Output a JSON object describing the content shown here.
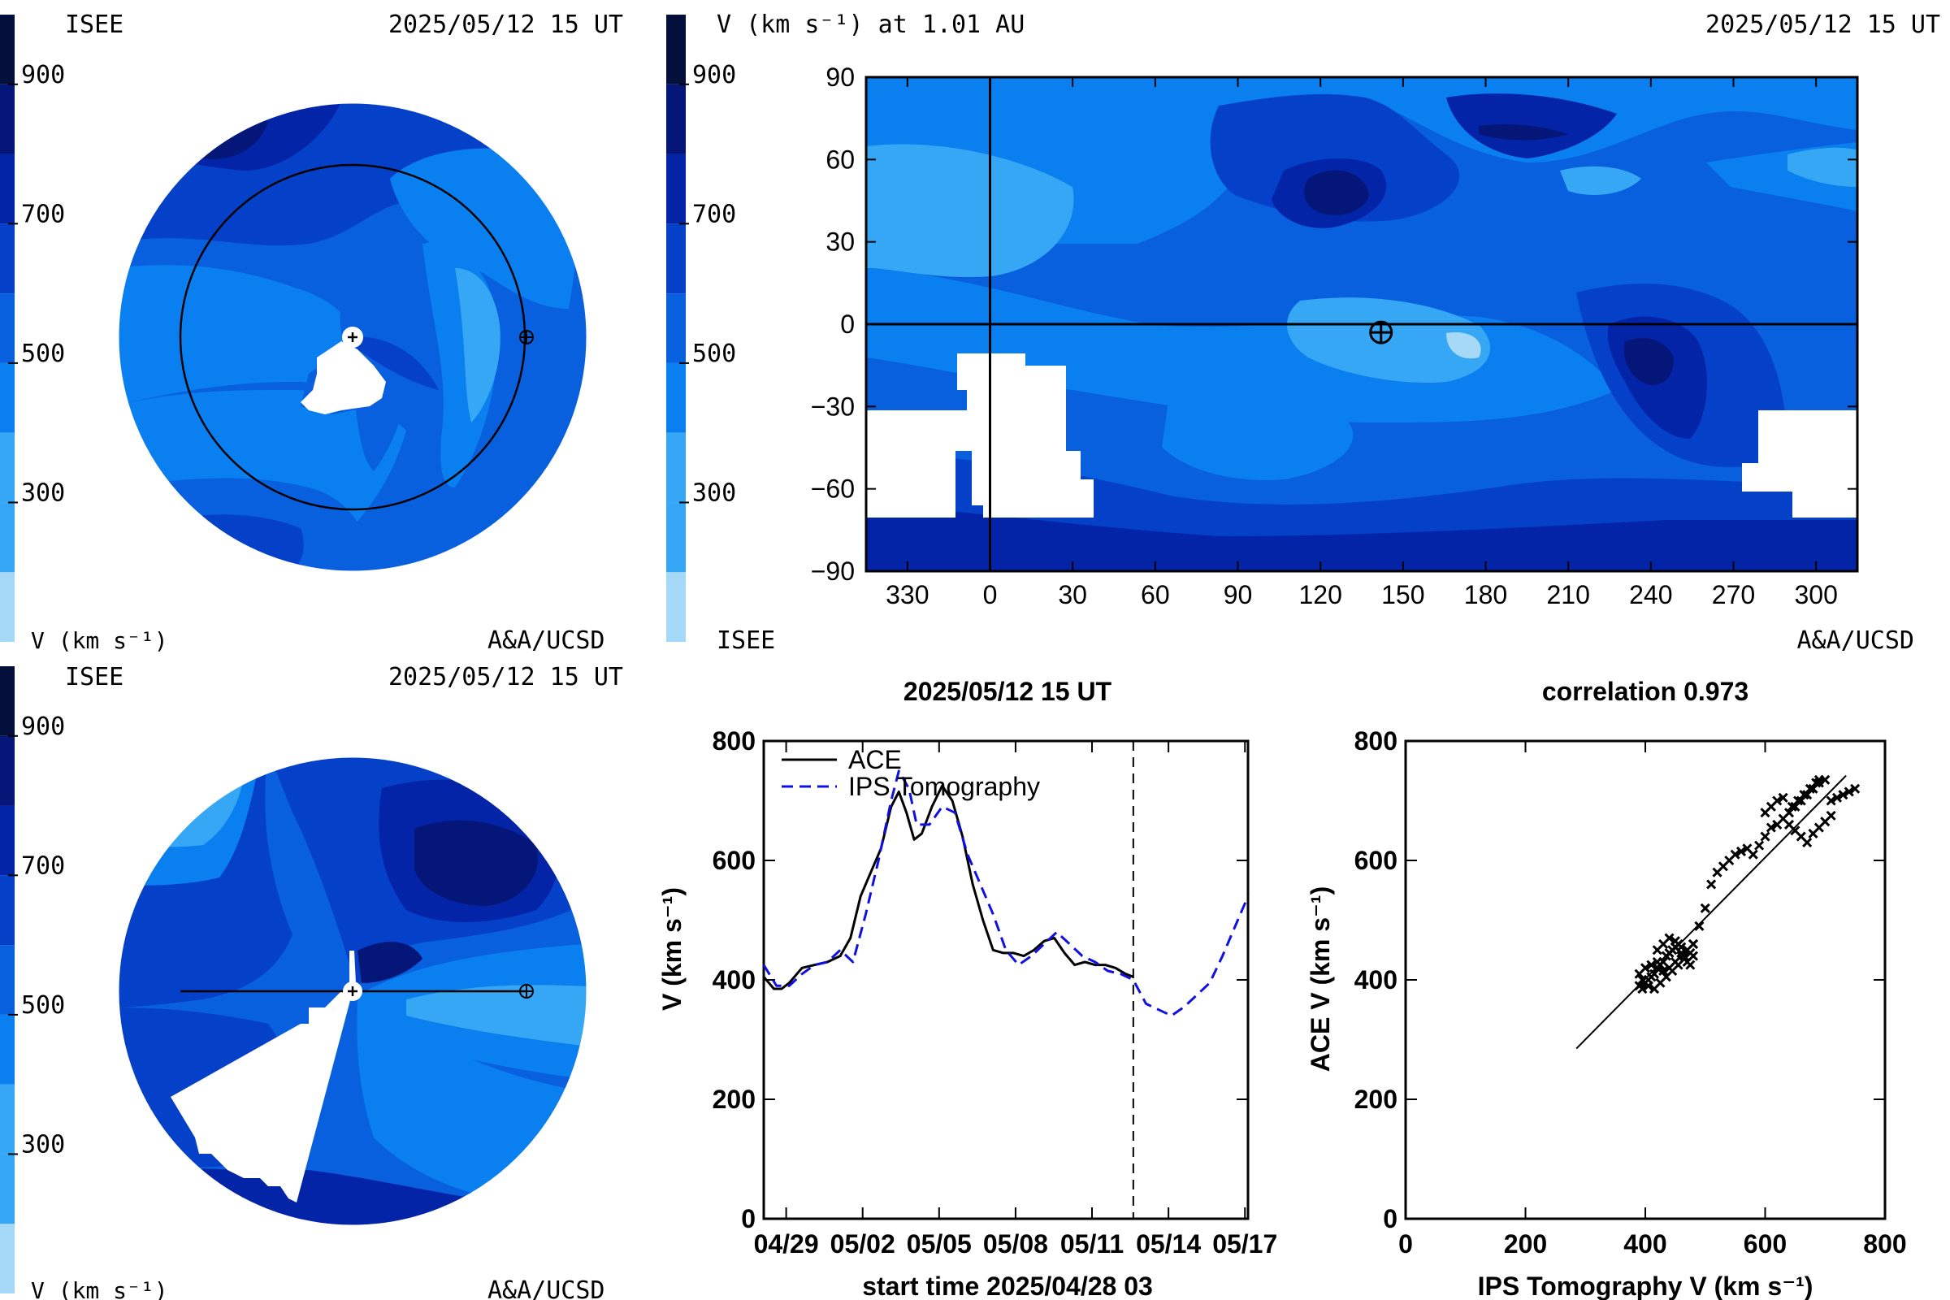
{
  "colors": {
    "v100": "#a6d8f7",
    "v300": "#36a7f5",
    "v400": "#0a7ff0",
    "v500": "#0860de",
    "v600": "#0540c8",
    "v700": "#0424a8",
    "v800": "#041678",
    "v900": "#040f3c",
    "mask": "#ffffff",
    "ink": "#000000",
    "ips_line": "#1010e0"
  },
  "colorbar": {
    "ticks": [
      {
        "value": 300,
        "label": "300"
      },
      {
        "value": 500,
        "label": "500"
      },
      {
        "value": 700,
        "label": "700"
      },
      {
        "value": 900,
        "label": "900"
      }
    ],
    "bands": [
      100,
      200,
      300,
      400,
      500,
      600,
      700,
      800,
      900,
      1000
    ]
  },
  "panels": {
    "ecliptic": {
      "org_left": "ISEE",
      "datetime": "2025/05/12 15 UT",
      "unit": "V (km s⁻¹)",
      "credit": "A&A/UCSD"
    },
    "synoptic": {
      "title": "V (km s⁻¹) at 1.01 AU",
      "datetime": "2025/05/12 15 UT",
      "org": "ISEE",
      "credit": "A&A/UCSD",
      "x_ticks": [
        "330",
        "0",
        "30",
        "60",
        "90",
        "120",
        "150",
        "180",
        "210",
        "240",
        "270",
        "300"
      ],
      "y_ticks": [
        "90",
        "60",
        "30",
        "0",
        "−30",
        "−60",
        "−90"
      ],
      "xlim": [
        315,
        675
      ],
      "ylim": [
        -90,
        90
      ],
      "earth_lon": 142,
      "earth_lat": -3,
      "crosshair_lon": 0,
      "crosshair_lat": 0
    },
    "meridional": {
      "org_left": "ISEE",
      "datetime": "2025/05/12 15 UT",
      "unit": "V (km s⁻¹)",
      "credit": "A&A/UCSD"
    }
  },
  "chart_data": [
    {
      "type": "line",
      "title": "2025/05/12 15 UT",
      "xlabel": "start time 2025/04/28 03",
      "ylabel": "V (km s⁻¹)",
      "ylim": [
        0,
        800
      ],
      "y_ticks": [
        0,
        200,
        400,
        600,
        800
      ],
      "x_ticks": [
        "04/29",
        "05/02",
        "05/05",
        "05/08",
        "05/11",
        "05/14",
        "05/17"
      ],
      "x_tick_days": [
        0.88,
        3.88,
        6.88,
        9.88,
        12.88,
        15.88,
        18.88
      ],
      "xlim_days": [
        0,
        19.0
      ],
      "current_time_day": 14.5,
      "series": [
        {
          "name": "ACE",
          "style": "solid",
          "color": "#000000",
          "x_days": [
            0,
            0.2,
            0.4,
            0.7,
            1.0,
            1.5,
            2.0,
            2.5,
            3.0,
            3.4,
            3.8,
            4.2,
            4.6,
            5.0,
            5.3,
            5.6,
            5.9,
            6.2,
            6.6,
            7.0,
            7.4,
            7.8,
            8.2,
            8.6,
            9.0,
            9.4,
            9.8,
            10.2,
            10.6,
            11.0,
            11.4,
            11.8,
            12.2,
            12.6,
            13.0,
            13.4,
            13.8,
            14.2,
            14.5
          ],
          "values": [
            405,
            395,
            385,
            385,
            395,
            420,
            425,
            430,
            440,
            470,
            540,
            580,
            620,
            690,
            715,
            680,
            635,
            645,
            690,
            725,
            700,
            640,
            560,
            500,
            450,
            445,
            445,
            440,
            450,
            465,
            470,
            445,
            425,
            430,
            425,
            425,
            420,
            410,
            405
          ]
        },
        {
          "name": "IPS Tomography",
          "style": "dashed",
          "color": "#1010e0",
          "x_days": [
            0,
            0.5,
            1.0,
            1.5,
            2.0,
            2.5,
            3.0,
            3.5,
            4.0,
            4.5,
            5.0,
            5.3,
            5.7,
            6.0,
            6.5,
            7.0,
            7.5,
            8.0,
            8.5,
            9.0,
            9.5,
            10.0,
            10.5,
            11.0,
            11.5,
            12.0,
            12.5,
            13.0,
            13.5,
            14.0,
            14.5,
            15.0,
            15.5,
            16.0,
            16.5,
            17.0,
            17.5,
            18.0,
            18.5,
            19.0
          ],
          "values": [
            425,
            390,
            390,
            410,
            425,
            430,
            450,
            430,
            510,
            600,
            700,
            750,
            720,
            660,
            660,
            690,
            680,
            610,
            560,
            510,
            450,
            425,
            440,
            460,
            480,
            460,
            440,
            430,
            415,
            410,
            400,
            360,
            350,
            340,
            355,
            375,
            395,
            440,
            490,
            540
          ]
        }
      ]
    },
    {
      "type": "scatter",
      "title": "correlation 0.973",
      "xlabel": "IPS Tomography V (km s⁻¹)",
      "ylabel": "ACE V (km s⁻¹)",
      "xlim": [
        0,
        800
      ],
      "ylim": [
        0,
        800
      ],
      "x_ticks": [
        0,
        200,
        400,
        600,
        800
      ],
      "y_ticks": [
        0,
        200,
        400,
        600,
        800
      ],
      "fit_line": {
        "x": [
          285,
          735
        ],
        "y": [
          285,
          742
        ]
      },
      "points": {
        "x": [
          390,
          395,
          400,
          405,
          410,
          415,
          420,
          425,
          430,
          435,
          440,
          445,
          450,
          455,
          460,
          465,
          470,
          475,
          480,
          390,
          400,
          410,
          420,
          430,
          440,
          450,
          460,
          470,
          480,
          395,
          405,
          415,
          425,
          435,
          445,
          455,
          465,
          475,
          420,
          430,
          440,
          450,
          460,
          470,
          480,
          490,
          500,
          510,
          520,
          530,
          540,
          550,
          560,
          570,
          580,
          590,
          600,
          610,
          620,
          630,
          640,
          650,
          660,
          670,
          680,
          690,
          700,
          710,
          720,
          730,
          740,
          750,
          640,
          650,
          660,
          670,
          680,
          690,
          700,
          710,
          600,
          610,
          620,
          630,
          645,
          655,
          665,
          675,
          685,
          690
        ],
        "y": [
          390,
          385,
          395,
          400,
          405,
          410,
          420,
          425,
          430,
          440,
          445,
          450,
          455,
          460,
          445,
          440,
          430,
          425,
          440,
          410,
          420,
          425,
          430,
          415,
          420,
          430,
          440,
          450,
          460,
          400,
          390,
          385,
          395,
          405,
          415,
          425,
          435,
          445,
          450,
          460,
          470,
          465,
          455,
          450,
          460,
          490,
          520,
          560,
          580,
          590,
          600,
          610,
          615,
          620,
          610,
          625,
          640,
          655,
          660,
          670,
          680,
          690,
          700,
          710,
          720,
          730,
          735,
          700,
          705,
          710,
          715,
          720,
          660,
          650,
          640,
          630,
          645,
          655,
          665,
          675,
          680,
          690,
          700,
          705,
          690,
          700,
          710,
          720,
          730,
          735
        ]
      }
    }
  ]
}
